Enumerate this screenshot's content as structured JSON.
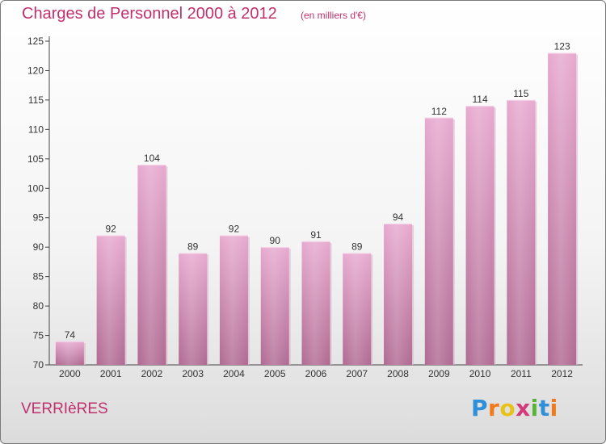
{
  "header": {
    "title": "Charges de Personnel 2000 à 2012",
    "subtitle": "(en milliers d'€)"
  },
  "footer": {
    "commune": "VERRIèRES"
  },
  "logo": {
    "text": "Proxiti",
    "letters": [
      {
        "char": "P",
        "color": "#2f8fd8"
      },
      {
        "char": "r",
        "color": "#f07a1a"
      },
      {
        "char": "o",
        "color": "#e8c21a"
      },
      {
        "char": "x",
        "color": "#d23a7a"
      },
      {
        "char": "i",
        "color": "#58b33a"
      },
      {
        "char": "t",
        "color": "#2f8fd8"
      },
      {
        "char": "i",
        "color": "#f07a1a"
      }
    ]
  },
  "colors": {
    "accent": "#c0306e",
    "bar_light": "#e7a9cf",
    "bar_dark": "#b06a92"
  },
  "chart_data": {
    "type": "bar",
    "categories": [
      "2000",
      "2001",
      "2002",
      "2003",
      "2004",
      "2005",
      "2006",
      "2007",
      "2008",
      "2009",
      "2010",
      "2011",
      "2012"
    ],
    "values": [
      74,
      92,
      104,
      89,
      92,
      90,
      91,
      89,
      94,
      112,
      114,
      115,
      123
    ],
    "title": "Charges de Personnel 2000 à 2012",
    "subtitle": "(en milliers d'€)",
    "xlabel": "",
    "ylabel": "",
    "ylim": [
      70,
      125
    ],
    "yticks": [
      70,
      75,
      80,
      85,
      90,
      95,
      100,
      105,
      110,
      115,
      120,
      125
    ],
    "grid": false,
    "data_labels": true
  }
}
